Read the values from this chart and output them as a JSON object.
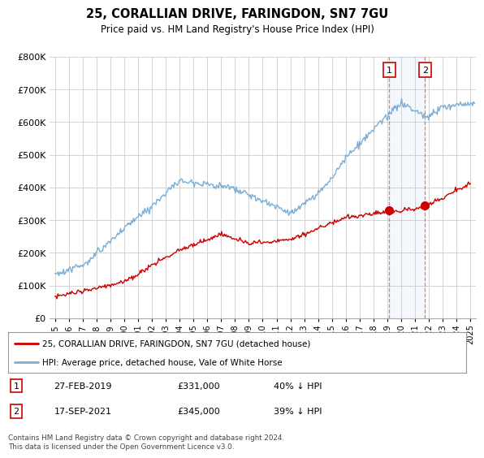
{
  "title": "25, CORALLIAN DRIVE, FARINGDON, SN7 7GU",
  "subtitle": "Price paid vs. HM Land Registry's House Price Index (HPI)",
  "legend_label_red": "25, CORALLIAN DRIVE, FARINGDON, SN7 7GU (detached house)",
  "legend_label_blue": "HPI: Average price, detached house, Vale of White Horse",
  "footer": "Contains HM Land Registry data © Crown copyright and database right 2024.\nThis data is licensed under the Open Government Licence v3.0.",
  "transaction1": {
    "label": "1",
    "date": "27-FEB-2019",
    "price": "£331,000",
    "hpi": "40% ↓ HPI"
  },
  "transaction2": {
    "label": "2",
    "date": "17-SEP-2021",
    "price": "£345,000",
    "hpi": "39% ↓ HPI"
  },
  "ylim": [
    0,
    800000
  ],
  "yticks": [
    0,
    100000,
    200000,
    300000,
    400000,
    500000,
    600000,
    700000,
    800000
  ],
  "background_color": "#ffffff",
  "grid_color": "#cccccc",
  "red_color": "#cc0000",
  "blue_color": "#7aaed6",
  "marker1_x": 2019.15,
  "marker1_y": 331000,
  "marker2_x": 2021.72,
  "marker2_y": 345000,
  "vline1_x": 2019.15,
  "vline2_x": 2021.72,
  "xlim_start": 1994.6,
  "xlim_end": 2025.4
}
